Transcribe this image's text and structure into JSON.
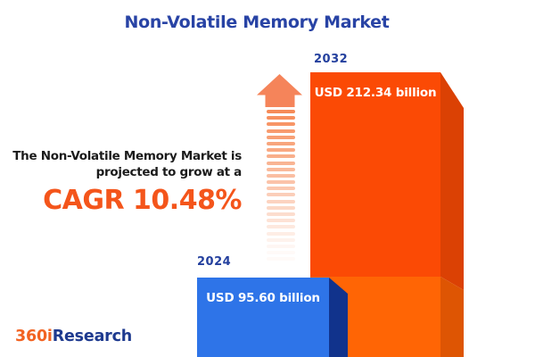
{
  "title": "Non-Volatile Memory Market",
  "subtitle": {
    "line1": "The Non-Volatile Memory Market is",
    "line2": "projected to grow at a",
    "cagr": "CAGR 10.48%"
  },
  "bars": {
    "b2032": {
      "year": "2032",
      "value_label": "USD 212.34 billion"
    },
    "b2024": {
      "year": "2024",
      "value_label": "USD 95.60 billion"
    }
  },
  "logo": {
    "part1": "360i",
    "part2": "Research"
  },
  "colors": {
    "title_blue": "#2843A5",
    "year_blue": "#24409E",
    "cagr_orange": "#F4551B",
    "text_dark": "#1B1B1B",
    "bar2032_front_top": "#FB4A05",
    "bar2032_front_bottom": "#FF6505",
    "bar2032_side_top": "#DB4104",
    "bar2032_side_bottom": "#DE5503",
    "bar2024_front": "#2E74E8",
    "bar2024_side": "#11338C",
    "arrow_head": "#F5845A",
    "arrow_stripe": "#F6854F",
    "logo_orange": "#F26322",
    "logo_blue": "#1E3A8F",
    "background": "#FFFFFF"
  },
  "chart_data": {
    "type": "bar",
    "title": "Non-Volatile Memory Market",
    "categories": [
      "2024",
      "2032"
    ],
    "values": [
      95.6,
      212.34
    ],
    "unit": "USD billion",
    "value_labels": [
      "USD 95.60 billion",
      "USD 212.34 billion"
    ],
    "series_colors": [
      "#2E74E8",
      "#FB4A05"
    ],
    "cagr_percent": 10.48,
    "annotation": "The Non-Volatile Memory Market is projected to grow at a CAGR 10.48%",
    "legend": "none",
    "grid": false,
    "axes_shown": false
  }
}
